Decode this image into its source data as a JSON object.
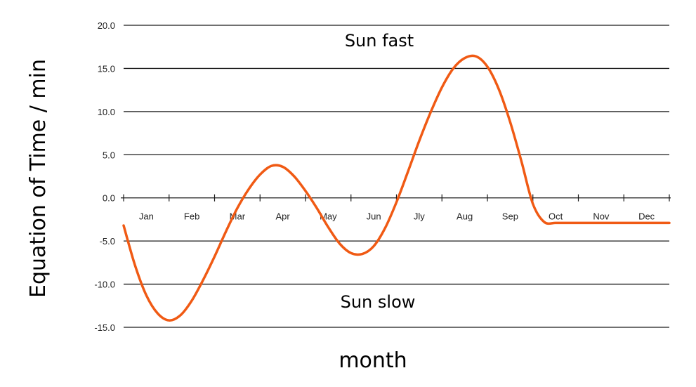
{
  "chart_data": {
    "type": "line",
    "title": "",
    "xlabel": "month",
    "ylabel": "Equation of Time / min",
    "ylim": [
      -15,
      20
    ],
    "yticks": [
      20,
      15,
      10,
      5,
      0,
      -5,
      -10,
      -15
    ],
    "ytick_labels": [
      "20.0",
      "15.0",
      "10.0",
      "5.0",
      "0.0",
      "-5.0",
      "-10.0",
      "-15.0"
    ],
    "categories": [
      "Jan",
      "Feb",
      "Mar",
      "Apr",
      "May",
      "Jun",
      "Jly",
      "Aug",
      "Sep",
      "Oct",
      "Nov",
      "Dec"
    ],
    "grid": true,
    "series": [
      {
        "color": "#f05a14",
        "x": [
          0.0,
          0.25,
          0.5,
          0.75,
          1.0,
          1.25,
          1.5,
          1.75,
          2.0,
          2.25,
          2.5,
          2.75,
          3.0,
          3.25,
          3.5,
          3.75,
          4.0,
          4.25,
          4.5,
          4.75,
          5.0,
          5.25,
          5.5,
          5.75,
          6.0,
          6.25,
          6.5,
          6.75,
          7.0,
          7.25,
          7.5,
          7.75,
          8.0,
          8.25,
          8.5,
          8.75,
          9.0,
          9.25,
          9.5,
          9.75,
          10.0,
          10.25,
          10.5,
          10.75,
          11.0,
          11.25,
          11.5,
          11.75,
          12.0
        ],
        "y": [
          -3.2,
          -7.8,
          -11.3,
          -13.4,
          -14.2,
          -13.6,
          -11.9,
          -9.5,
          -6.8,
          -3.9,
          -1.2,
          1.0,
          2.7,
          3.7,
          3.6,
          2.5,
          0.8,
          -1.2,
          -3.4,
          -5.3,
          -6.4,
          -6.5,
          -5.6,
          -3.5,
          -0.5,
          3.0,
          6.6,
          9.9,
          12.8,
          15.0,
          16.2,
          16.4,
          15.2,
          12.6,
          8.8,
          4.2,
          -0.7,
          -2.8,
          -2.9,
          -2.9,
          -2.9,
          -2.9,
          -2.9,
          -2.9,
          -2.9,
          -2.9,
          -2.9,
          -2.9,
          -2.9
        ]
      }
    ]
  },
  "annotations": {
    "top": "Sun fast",
    "bottom": "Sun slow"
  }
}
